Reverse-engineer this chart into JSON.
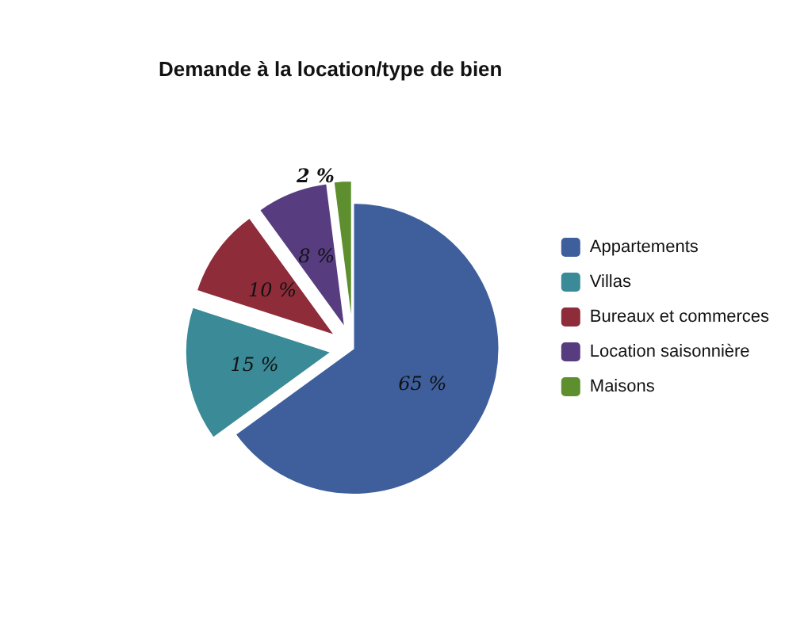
{
  "chart_data": {
    "type": "pie",
    "title": "Demande à la location/type de bien",
    "categories": [
      "Appartements",
      "Villas",
      "Bureaux et commerces",
      "Location saisonnière",
      "Maisons"
    ],
    "values": [
      65,
      15,
      10,
      8,
      2
    ],
    "value_labels": [
      "65 %",
      "15 %",
      "10 %",
      "8 %",
      "2 %"
    ],
    "colors": [
      "#3e5f9b",
      "#3a8a97",
      "#8e2c3a",
      "#573d80",
      "#5e8f2e"
    ],
    "legend": "right"
  }
}
